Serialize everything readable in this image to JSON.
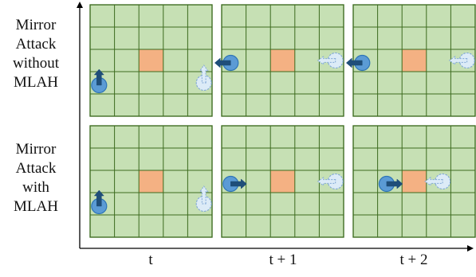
{
  "rows": [
    {
      "label": "Mirror\nAttack\nwithout\nMLAH",
      "panels": [
        {
          "agent": {
            "col": 0,
            "row": 3,
            "dir": "up"
          },
          "ghost": {
            "col": 4,
            "row": 3,
            "dir": "up"
          }
        },
        {
          "agent": {
            "col": 0,
            "row": 2,
            "dir": "left"
          },
          "ghost": {
            "col": 4,
            "row": 2,
            "dir": "left"
          }
        },
        {
          "agent": {
            "col": 0,
            "row": 2,
            "dir": "left"
          },
          "ghost": {
            "col": 4,
            "row": 2,
            "dir": "left"
          }
        }
      ]
    },
    {
      "label": "Mirror\nAttack\nwith\nMLAH",
      "panels": [
        {
          "agent": {
            "col": 0,
            "row": 3,
            "dir": "up"
          },
          "ghost": {
            "col": 4,
            "row": 3,
            "dir": "up"
          }
        },
        {
          "agent": {
            "col": 0,
            "row": 2,
            "dir": "right"
          },
          "ghost": {
            "col": 4,
            "row": 2,
            "dir": "left"
          }
        },
        {
          "agent": {
            "col": 1,
            "row": 2,
            "dir": "right"
          },
          "ghost": {
            "col": 3,
            "row": 2,
            "dir": "left"
          }
        }
      ]
    }
  ],
  "columns": [
    "t",
    "t + 1",
    "t + 2"
  ],
  "grid": {
    "cols": 5,
    "rows": 5,
    "target": {
      "col": 2,
      "row": 2
    }
  },
  "colors": {
    "cell": "#c6e0b4",
    "grid_line": "#3d6b1f",
    "target": "#f4b183",
    "agent_fill": "#5b9bd5",
    "agent_stroke": "#2e75b6",
    "arrow": "#1f4e79",
    "ghost_fill": "#dcebf7",
    "ghost_stroke": "#7fa7d6",
    "axis": "#000000"
  }
}
